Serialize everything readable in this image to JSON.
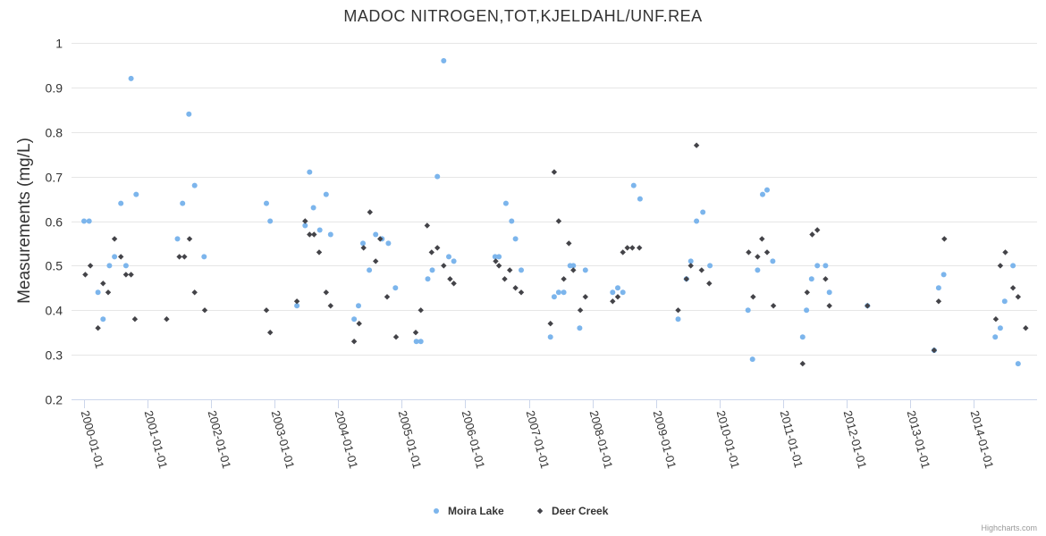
{
  "chart_data": {
    "type": "scatter",
    "title": "MADOC NITROGEN,TOT,KJELDAHL/UNF.REA",
    "xlabel": "",
    "ylabel": "Measurements (mg/L)",
    "ylim": [
      0.2,
      1.0
    ],
    "yticks": [
      "0.2",
      "0.3",
      "0.4",
      "0.5",
      "0.6",
      "0.7",
      "0.8",
      "0.9",
      "1"
    ],
    "xlim": [
      1999.92,
      2014.82
    ],
    "xticks": [
      {
        "label": "2000-01-01",
        "value": 2000
      },
      {
        "label": "2001-01-01",
        "value": 2001
      },
      {
        "label": "2002-01-01",
        "value": 2002
      },
      {
        "label": "2003-01-01",
        "value": 2003
      },
      {
        "label": "2004-01-01",
        "value": 2004
      },
      {
        "label": "2005-01-01",
        "value": 2005
      },
      {
        "label": "2006-01-01",
        "value": 2006
      },
      {
        "label": "2007-01-01",
        "value": 2007
      },
      {
        "label": "2008-01-01",
        "value": 2008
      },
      {
        "label": "2009-01-01",
        "value": 2009
      },
      {
        "label": "2010-01-01",
        "value": 2010
      },
      {
        "label": "2011-01-01",
        "value": 2011
      },
      {
        "label": "2012-01-01",
        "value": 2012
      },
      {
        "label": "2013-01-01",
        "value": 2013
      },
      {
        "label": "2014-01-01",
        "value": 2014
      }
    ],
    "grid": true,
    "legend_position": "bottom-center",
    "series": [
      {
        "name": "Moira Lake",
        "color": "#7cb5ec",
        "marker": "circle",
        "points": [
          [
            2000.0,
            0.6
          ],
          [
            2000.08,
            0.6
          ],
          [
            2000.22,
            0.44
          ],
          [
            2000.3,
            0.38
          ],
          [
            2000.4,
            0.5
          ],
          [
            2000.48,
            0.52
          ],
          [
            2000.58,
            0.64
          ],
          [
            2000.66,
            0.5
          ],
          [
            2000.74,
            0.92
          ],
          [
            2000.82,
            0.66
          ],
          [
            2001.47,
            0.56
          ],
          [
            2001.55,
            0.64
          ],
          [
            2001.65,
            0.84
          ],
          [
            2001.74,
            0.68
          ],
          [
            2001.89,
            0.52
          ],
          [
            2002.87,
            0.64
          ],
          [
            2002.93,
            0.6
          ],
          [
            2003.35,
            0.41
          ],
          [
            2003.48,
            0.59
          ],
          [
            2003.55,
            0.71
          ],
          [
            2003.61,
            0.63
          ],
          [
            2003.71,
            0.58
          ],
          [
            2003.81,
            0.66
          ],
          [
            2003.88,
            0.57
          ],
          [
            2004.25,
            0.38
          ],
          [
            2004.32,
            0.41
          ],
          [
            2004.39,
            0.55
          ],
          [
            2004.49,
            0.49
          ],
          [
            2004.59,
            0.57
          ],
          [
            2004.69,
            0.56
          ],
          [
            2004.79,
            0.55
          ],
          [
            2004.9,
            0.45
          ],
          [
            2005.23,
            0.33
          ],
          [
            2005.3,
            0.33
          ],
          [
            2005.41,
            0.47
          ],
          [
            2005.48,
            0.49
          ],
          [
            2005.56,
            0.7
          ],
          [
            2005.66,
            0.96
          ],
          [
            2005.74,
            0.52
          ],
          [
            2005.82,
            0.51
          ],
          [
            2006.47,
            0.52
          ],
          [
            2006.53,
            0.52
          ],
          [
            2006.64,
            0.64
          ],
          [
            2006.73,
            0.6
          ],
          [
            2006.79,
            0.56
          ],
          [
            2006.88,
            0.49
          ],
          [
            2007.34,
            0.34
          ],
          [
            2007.4,
            0.43
          ],
          [
            2007.47,
            0.44
          ],
          [
            2007.55,
            0.44
          ],
          [
            2007.65,
            0.5
          ],
          [
            2007.7,
            0.5
          ],
          [
            2007.8,
            0.36
          ],
          [
            2007.89,
            0.49
          ],
          [
            2008.32,
            0.44
          ],
          [
            2008.4,
            0.45
          ],
          [
            2008.48,
            0.44
          ],
          [
            2008.65,
            0.68
          ],
          [
            2008.75,
            0.65
          ],
          [
            2009.35,
            0.38
          ],
          [
            2009.48,
            0.47
          ],
          [
            2009.55,
            0.51
          ],
          [
            2009.64,
            0.6
          ],
          [
            2009.74,
            0.62
          ],
          [
            2009.85,
            0.5
          ],
          [
            2010.45,
            0.4
          ],
          [
            2010.52,
            0.29
          ],
          [
            2010.6,
            0.49
          ],
          [
            2010.68,
            0.66
          ],
          [
            2010.75,
            0.67
          ],
          [
            2010.84,
            0.51
          ],
          [
            2011.31,
            0.34
          ],
          [
            2011.37,
            0.4
          ],
          [
            2011.45,
            0.47
          ],
          [
            2011.54,
            0.5
          ],
          [
            2011.67,
            0.5
          ],
          [
            2011.73,
            0.44
          ],
          [
            2012.33,
            0.41
          ],
          [
            2013.38,
            0.31
          ],
          [
            2013.45,
            0.45
          ],
          [
            2013.53,
            0.48
          ],
          [
            2014.34,
            0.34
          ],
          [
            2014.42,
            0.36
          ],
          [
            2014.49,
            0.42
          ],
          [
            2014.62,
            0.5
          ],
          [
            2014.7,
            0.28
          ]
        ]
      },
      {
        "name": "Deer Creek",
        "color": "#434348",
        "marker": "diamond",
        "points": [
          [
            2000.02,
            0.48
          ],
          [
            2000.1,
            0.5
          ],
          [
            2000.22,
            0.36
          ],
          [
            2000.3,
            0.46
          ],
          [
            2000.38,
            0.44
          ],
          [
            2000.48,
            0.56
          ],
          [
            2000.58,
            0.52
          ],
          [
            2000.66,
            0.48
          ],
          [
            2000.74,
            0.48
          ],
          [
            2000.8,
            0.38
          ],
          [
            2001.3,
            0.38
          ],
          [
            2001.5,
            0.52
          ],
          [
            2001.58,
            0.52
          ],
          [
            2001.66,
            0.56
          ],
          [
            2001.74,
            0.44
          ],
          [
            2001.9,
            0.4
          ],
          [
            2002.87,
            0.4
          ],
          [
            2002.93,
            0.35
          ],
          [
            2003.35,
            0.42
          ],
          [
            2003.48,
            0.6
          ],
          [
            2003.55,
            0.57
          ],
          [
            2003.62,
            0.57
          ],
          [
            2003.7,
            0.53
          ],
          [
            2003.81,
            0.44
          ],
          [
            2003.88,
            0.41
          ],
          [
            2004.25,
            0.33
          ],
          [
            2004.33,
            0.37
          ],
          [
            2004.4,
            0.54
          ],
          [
            2004.5,
            0.62
          ],
          [
            2004.59,
            0.51
          ],
          [
            2004.66,
            0.56
          ],
          [
            2004.77,
            0.43
          ],
          [
            2004.91,
            0.34
          ],
          [
            2005.22,
            0.35
          ],
          [
            2005.3,
            0.4
          ],
          [
            2005.4,
            0.59
          ],
          [
            2005.47,
            0.53
          ],
          [
            2005.56,
            0.54
          ],
          [
            2005.66,
            0.5
          ],
          [
            2005.76,
            0.47
          ],
          [
            2005.82,
            0.46
          ],
          [
            2006.48,
            0.51
          ],
          [
            2006.53,
            0.5
          ],
          [
            2006.62,
            0.47
          ],
          [
            2006.7,
            0.49
          ],
          [
            2006.79,
            0.45
          ],
          [
            2006.88,
            0.44
          ],
          [
            2007.34,
            0.37
          ],
          [
            2007.4,
            0.71
          ],
          [
            2007.47,
            0.6
          ],
          [
            2007.55,
            0.47
          ],
          [
            2007.63,
            0.55
          ],
          [
            2007.7,
            0.49
          ],
          [
            2007.81,
            0.4
          ],
          [
            2007.89,
            0.43
          ],
          [
            2008.32,
            0.42
          ],
          [
            2008.4,
            0.43
          ],
          [
            2008.48,
            0.53
          ],
          [
            2008.55,
            0.54
          ],
          [
            2008.63,
            0.54
          ],
          [
            2008.74,
            0.54
          ],
          [
            2009.35,
            0.4
          ],
          [
            2009.48,
            0.47
          ],
          [
            2009.55,
            0.5
          ],
          [
            2009.64,
            0.77
          ],
          [
            2009.72,
            0.49
          ],
          [
            2009.84,
            0.46
          ],
          [
            2010.46,
            0.53
          ],
          [
            2010.53,
            0.43
          ],
          [
            2010.6,
            0.52
          ],
          [
            2010.67,
            0.56
          ],
          [
            2010.75,
            0.53
          ],
          [
            2010.85,
            0.41
          ],
          [
            2011.31,
            0.28
          ],
          [
            2011.38,
            0.44
          ],
          [
            2011.46,
            0.57
          ],
          [
            2011.54,
            0.58
          ],
          [
            2011.67,
            0.47
          ],
          [
            2011.73,
            0.41
          ],
          [
            2012.33,
            0.41
          ],
          [
            2013.38,
            0.31
          ],
          [
            2013.45,
            0.42
          ],
          [
            2013.54,
            0.56
          ],
          [
            2014.35,
            0.38
          ],
          [
            2014.42,
            0.5
          ],
          [
            2014.5,
            0.53
          ],
          [
            2014.62,
            0.45
          ],
          [
            2014.7,
            0.43
          ],
          [
            2014.82,
            0.36
          ]
        ]
      }
    ],
    "credits": "Highcharts.com"
  }
}
